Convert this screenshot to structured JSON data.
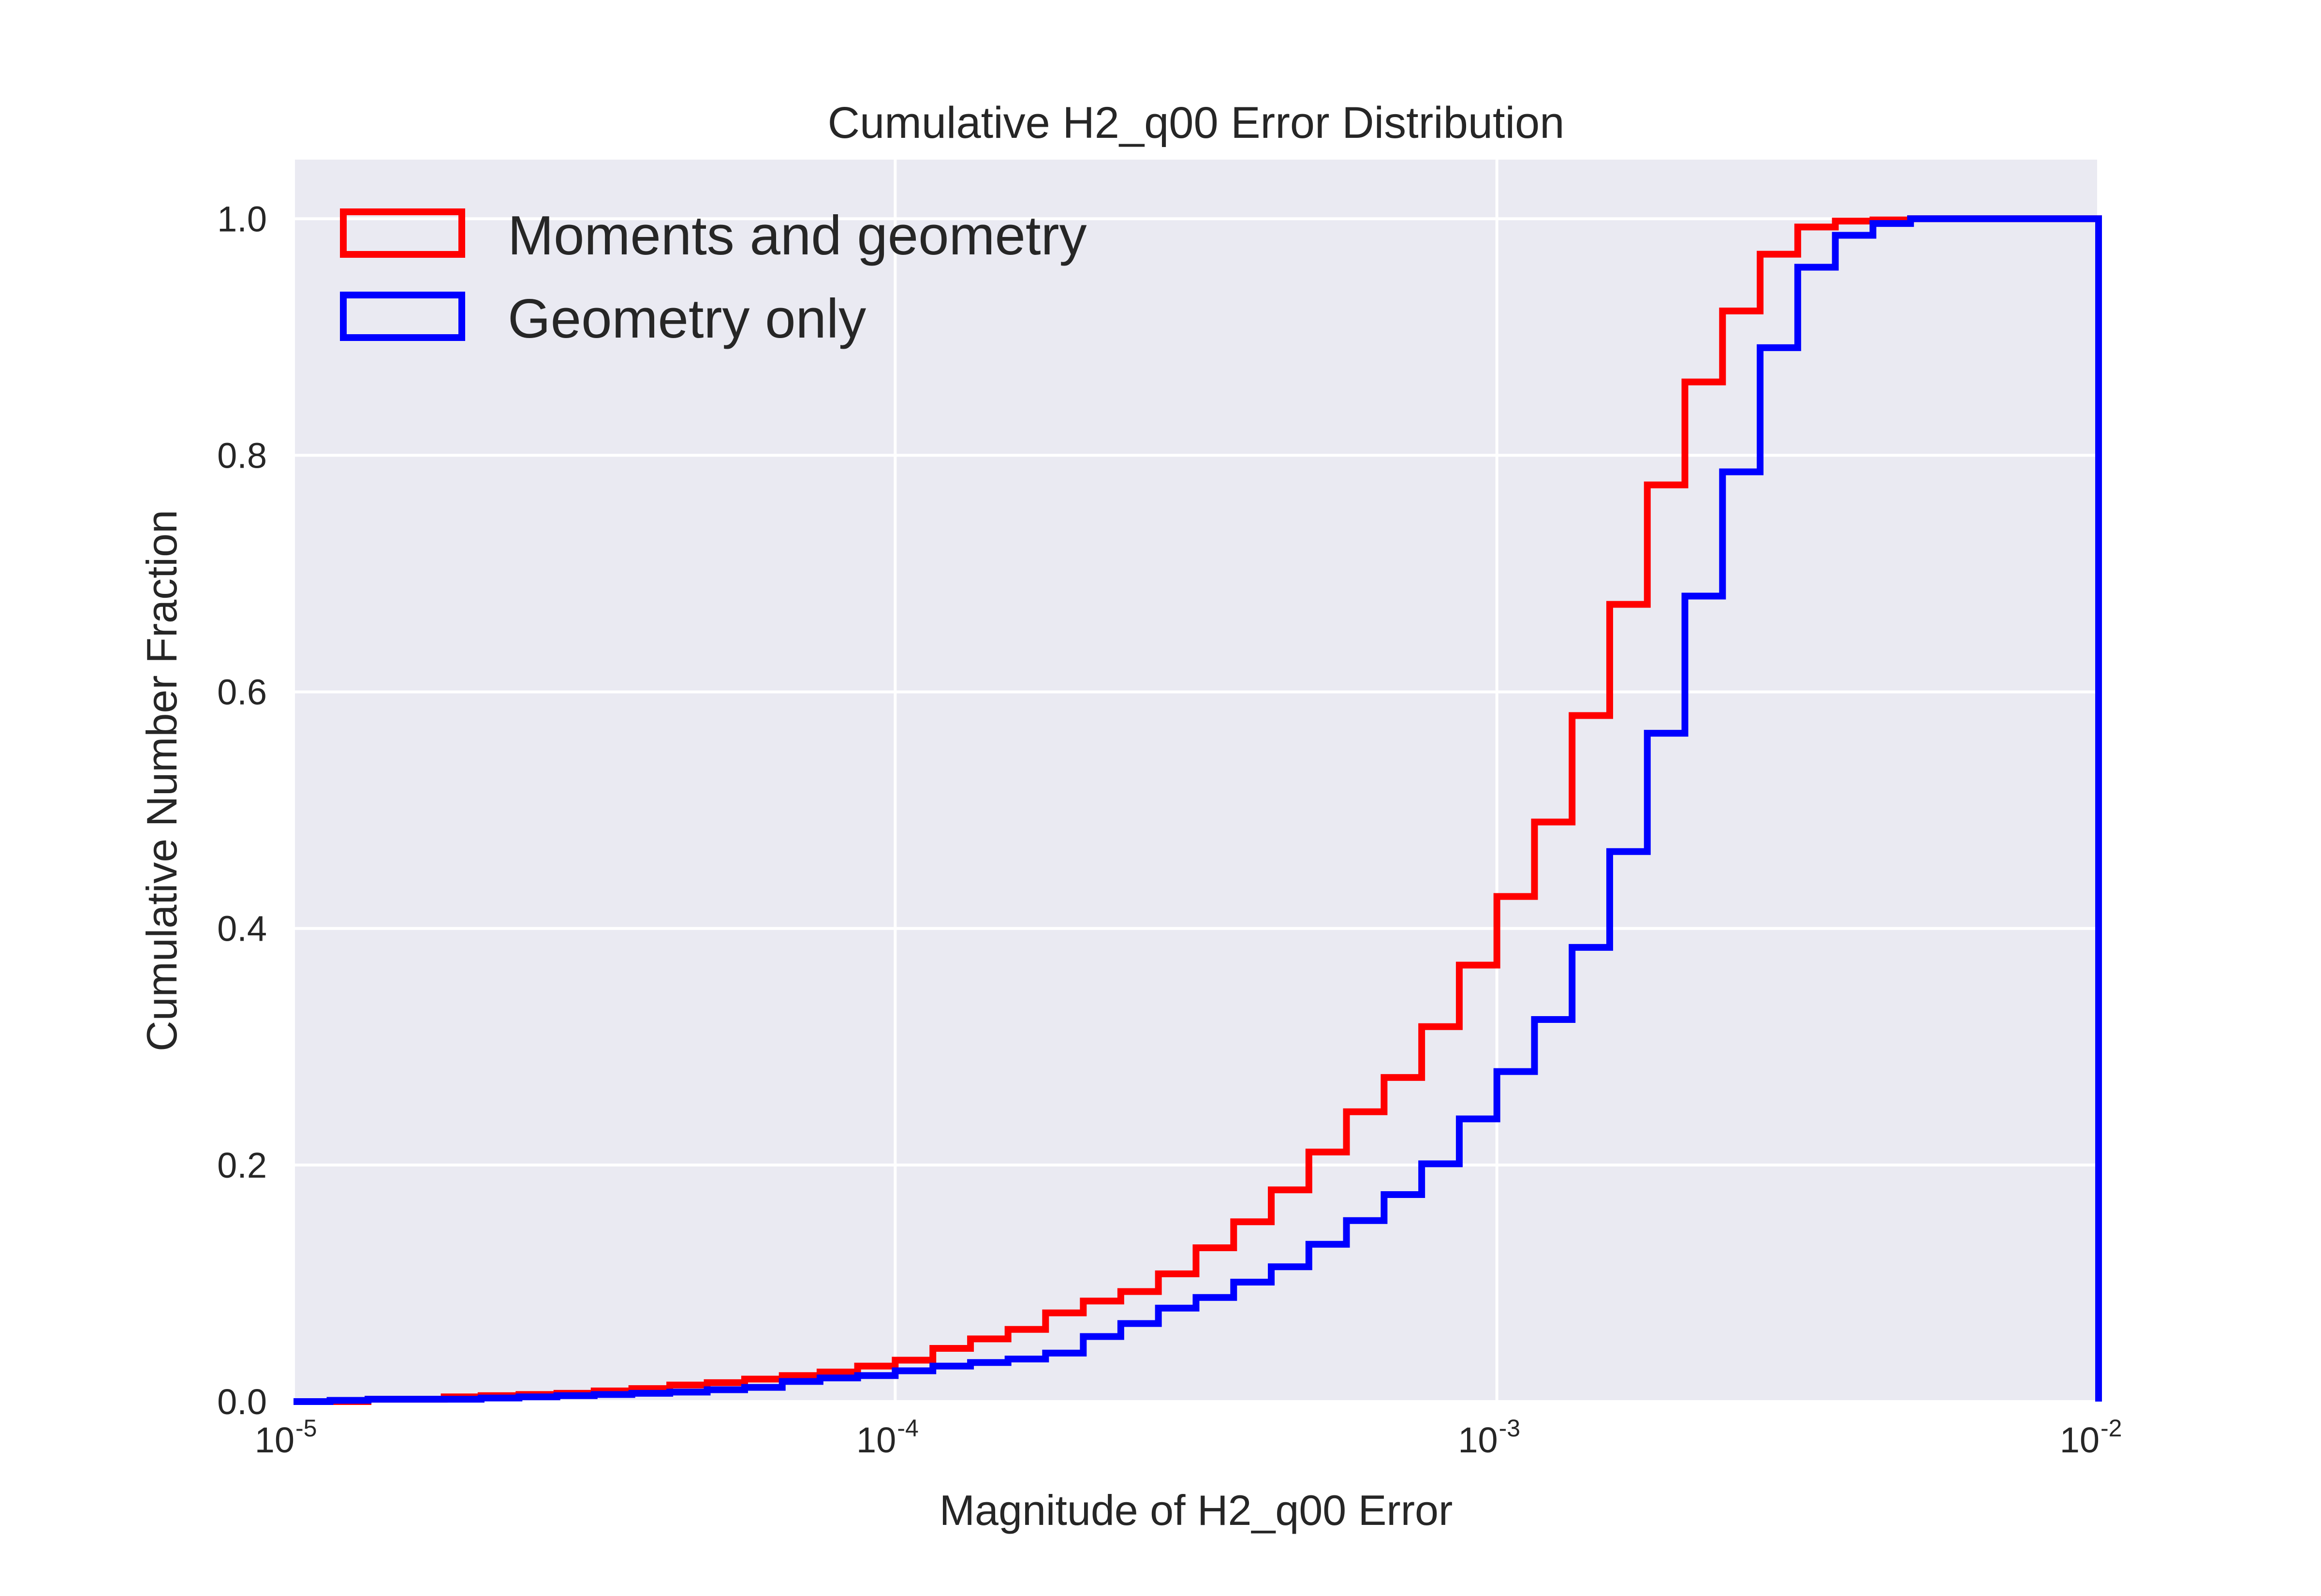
{
  "chart_data": {
    "type": "step",
    "title": "Cumulative H2_q00 Error Distribution",
    "xlabel": "Magnitude of H2_q00 Error",
    "ylabel": "Cumulative Number Fraction",
    "xscale": "log",
    "xlim": [
      1e-05,
      0.01
    ],
    "ylim": [
      0.0,
      1.05
    ],
    "grid": true,
    "legend_position": "top-left",
    "background": "#EAEAF2",
    "x_ticks": [
      {
        "base": "10",
        "exp": "-5",
        "value": 1e-05
      },
      {
        "base": "10",
        "exp": "-4",
        "value": 0.0001
      },
      {
        "base": "10",
        "exp": "-3",
        "value": 0.001
      },
      {
        "base": "10",
        "exp": "-2",
        "value": 0.01
      }
    ],
    "y_ticks": [
      {
        "label": "0.0",
        "value": 0.0
      },
      {
        "label": "0.2",
        "value": 0.2
      },
      {
        "label": "0.4",
        "value": 0.4
      },
      {
        "label": "0.6",
        "value": 0.6
      },
      {
        "label": "0.8",
        "value": 0.8
      },
      {
        "label": "1.0",
        "value": 1.0
      }
    ],
    "series": [
      {
        "name": "Moments and geometry",
        "color": "#ff0000",
        "x": [
          1e-05,
          1.33e-05,
          1.78e-05,
          2.05e-05,
          2.37e-05,
          2.74e-05,
          3.16e-05,
          3.65e-05,
          4.22e-05,
          4.87e-05,
          5.62e-05,
          6.49e-05,
          7.5e-05,
          8.66e-05,
          0.0001,
          0.0001155,
          0.0001334,
          0.000154,
          0.0001778,
          0.0002054,
          0.0002371,
          0.0002738,
          0.0003162,
          0.0003652,
          0.0004217,
          0.000487,
          0.0005623,
          0.0006494,
          0.0007499,
          0.000866,
          0.001,
          0.0011548,
          0.0013335,
          0.0015399,
          0.0017783,
          0.0020535,
          0.0023714,
          0.0027384,
          0.0031623,
          0.0036517,
          0.004217,
          0.0048697
        ],
        "y": [
          0.0,
          0.002,
          0.004,
          0.005,
          0.006,
          0.007,
          0.009,
          0.011,
          0.014,
          0.016,
          0.019,
          0.022,
          0.025,
          0.03,
          0.035,
          0.045,
          0.053,
          0.061,
          0.075,
          0.085,
          0.093,
          0.108,
          0.13,
          0.152,
          0.179,
          0.211,
          0.245,
          0.274,
          0.317,
          0.369,
          0.427,
          0.49,
          0.58,
          0.674,
          0.775,
          0.862,
          0.922,
          0.97,
          0.993,
          0.998,
          0.999,
          1.0
        ]
      },
      {
        "name": "Geometry only",
        "color": "#0000ff",
        "x": [
          1e-05,
          1.15e-05,
          1.33e-05,
          2.05e-05,
          2.37e-05,
          2.74e-05,
          3.16e-05,
          3.65e-05,
          4.22e-05,
          4.87e-05,
          5.62e-05,
          6.49e-05,
          7.5e-05,
          8.66e-05,
          0.0001,
          0.0001155,
          0.0001334,
          0.000154,
          0.0001778,
          0.0002054,
          0.0002371,
          0.0002738,
          0.0003162,
          0.0003652,
          0.0004217,
          0.000487,
          0.0005623,
          0.0006494,
          0.0007499,
          0.000866,
          0.001,
          0.0011548,
          0.0013335,
          0.0015399,
          0.0017783,
          0.0020535,
          0.0023714,
          0.0027384,
          0.0031623,
          0.0036517,
          0.004217,
          0.0048697
        ],
        "y": [
          0.0,
          0.001,
          0.002,
          0.003,
          0.004,
          0.005,
          0.006,
          0.007,
          0.008,
          0.01,
          0.012,
          0.017,
          0.02,
          0.022,
          0.026,
          0.03,
          0.033,
          0.036,
          0.041,
          0.055,
          0.066,
          0.079,
          0.088,
          0.101,
          0.114,
          0.133,
          0.153,
          0.175,
          0.201,
          0.239,
          0.279,
          0.323,
          0.384,
          0.465,
          0.565,
          0.681,
          0.786,
          0.891,
          0.959,
          0.986,
          0.996,
          1.0
        ]
      }
    ]
  }
}
